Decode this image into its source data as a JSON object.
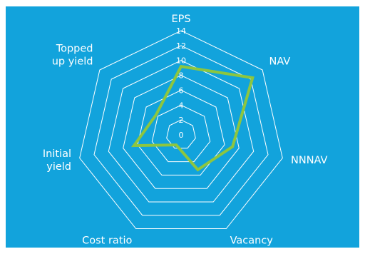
{
  "chart_data": {
    "type": "radar",
    "axes": [
      "EPS",
      "NAV",
      "NNNAV",
      "Vacancy",
      "Cost ratio",
      "Initial yield",
      "Topped up yield"
    ],
    "axis_label_lines": [
      [
        "EPS"
      ],
      [
        "NAV"
      ],
      [
        "NNNAV"
      ],
      [
        "Vacancy"
      ],
      [
        "Cost ratio"
      ],
      [
        "Initial",
        "yield"
      ],
      [
        "Topped",
        "up yield"
      ]
    ],
    "ticks": [
      "0",
      "2",
      "4",
      "6",
      "8",
      "10",
      "12",
      "14"
    ],
    "tick_values": [
      0,
      2,
      4,
      6,
      8,
      10,
      12,
      14
    ],
    "range": [
      0,
      14
    ],
    "series": [
      {
        "values": [
          9.2,
          12.3,
          7.1,
          5.2,
          1.5,
          6.5,
          4.3
        ],
        "color": "#8dc63f"
      }
    ],
    "background_color": "#12a3dc",
    "grid_color": "#ffffff",
    "legend": "none"
  }
}
